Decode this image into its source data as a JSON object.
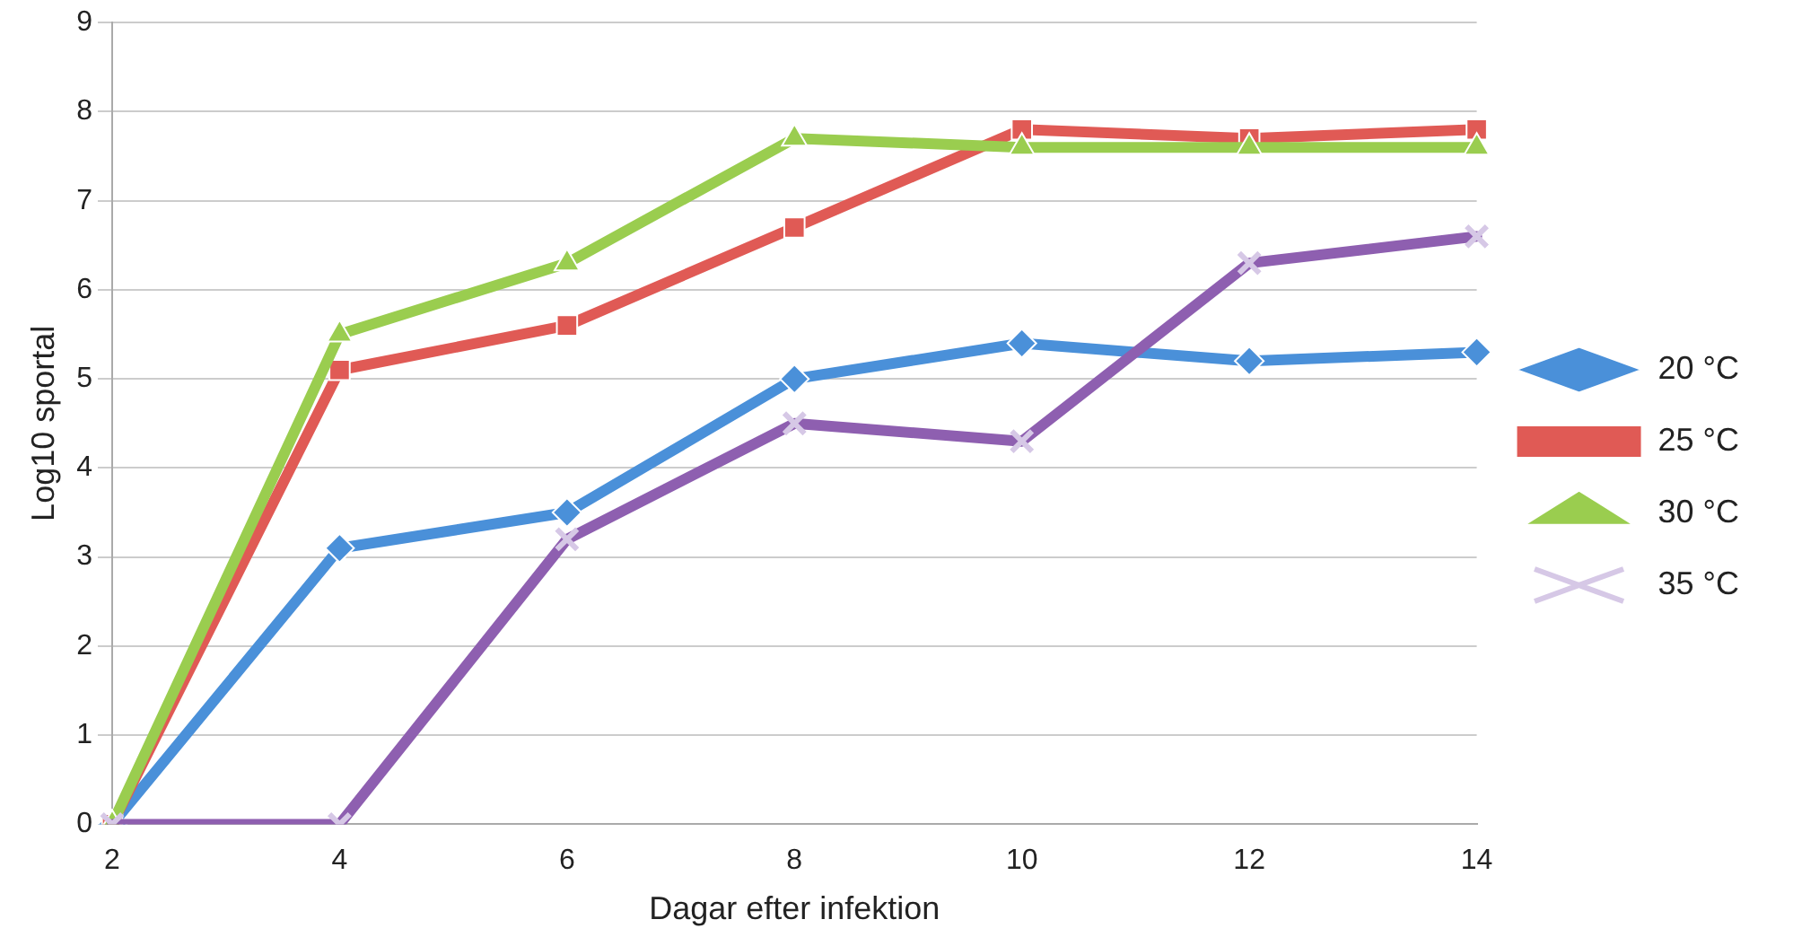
{
  "chart_data": {
    "type": "line",
    "xlabel": "Dagar efter infektion",
    "ylabel": "Log10 sportal",
    "categories": [
      "2",
      "4",
      "6",
      "8",
      "10",
      "12",
      "14"
    ],
    "ylim": [
      0,
      9
    ],
    "yticks": [
      0,
      1,
      2,
      3,
      4,
      5,
      6,
      7,
      8,
      9
    ],
    "grid": "y",
    "legend": "right",
    "series": [
      {
        "name": "20 °C",
        "color": "#4a90d9",
        "marker": "diamond",
        "values": [
          0,
          3.1,
          3.5,
          5.0,
          5.4,
          5.2,
          5.3
        ]
      },
      {
        "name": "25 °C",
        "color": "#e05a55",
        "marker": "square",
        "values": [
          0,
          5.1,
          5.6,
          6.7,
          7.8,
          7.7,
          7.8
        ]
      },
      {
        "name": "30 °C",
        "color": "#9acd4f",
        "marker": "triangle",
        "values": [
          0,
          5.5,
          6.3,
          7.7,
          7.6,
          7.6,
          7.6
        ]
      },
      {
        "name": "35 °C",
        "color": "#8e5fb0",
        "marker": "cross",
        "values": [
          0,
          0,
          3.2,
          4.5,
          4.3,
          6.3,
          6.6
        ]
      }
    ]
  }
}
